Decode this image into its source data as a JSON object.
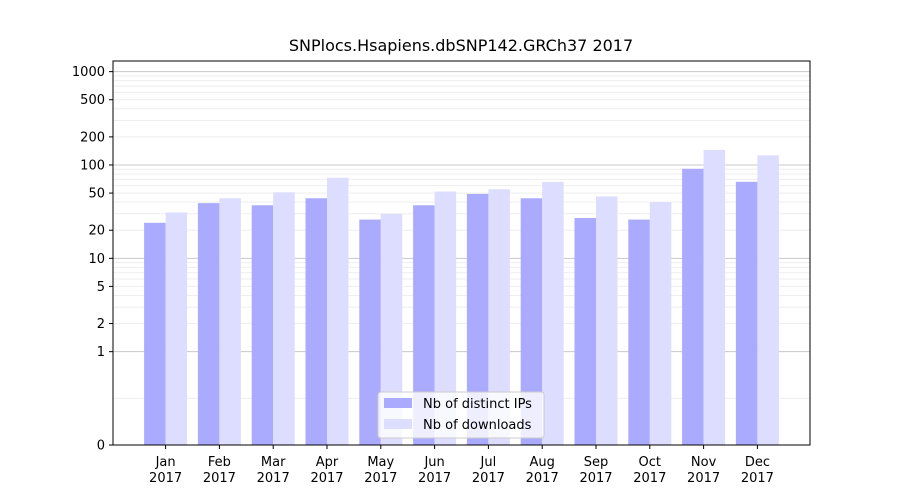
{
  "chart_data": {
    "type": "bar",
    "title": "SNPlocs.Hsapiens.dbSNP142.GRCh37 2017",
    "xlabel": "",
    "ylabel": "",
    "y_scale": "symlog",
    "ylim": [
      0,
      1300
    ],
    "categories": [
      [
        "Jan",
        "2017"
      ],
      [
        "Feb",
        "2017"
      ],
      [
        "Mar",
        "2017"
      ],
      [
        "Apr",
        "2017"
      ],
      [
        "May",
        "2017"
      ],
      [
        "Jun",
        "2017"
      ],
      [
        "Jul",
        "2017"
      ],
      [
        "Aug",
        "2017"
      ],
      [
        "Sep",
        "2017"
      ],
      [
        "Oct",
        "2017"
      ],
      [
        "Nov",
        "2017"
      ],
      [
        "Dec",
        "2017"
      ]
    ],
    "y_ticks": [
      0,
      1,
      2,
      5,
      10,
      20,
      50,
      100,
      200,
      500,
      1000
    ],
    "y_tick_labels": [
      "0",
      "1",
      "2",
      "5",
      "10",
      "20",
      "50",
      "100",
      "200",
      "500",
      "1000"
    ],
    "series": [
      {
        "name": "Nb of distinct IPs",
        "color": "#aaaaff",
        "values": [
          24,
          39,
          37,
          44,
          26,
          37,
          49,
          44,
          27,
          26,
          91,
          66
        ]
      },
      {
        "name": "Nb of downloads",
        "color": "#ddddff",
        "values": [
          31,
          44,
          51,
          73,
          30,
          52,
          55,
          66,
          46,
          40,
          145,
          127
        ]
      }
    ],
    "grid": true,
    "legend_position": "bottom-center"
  }
}
